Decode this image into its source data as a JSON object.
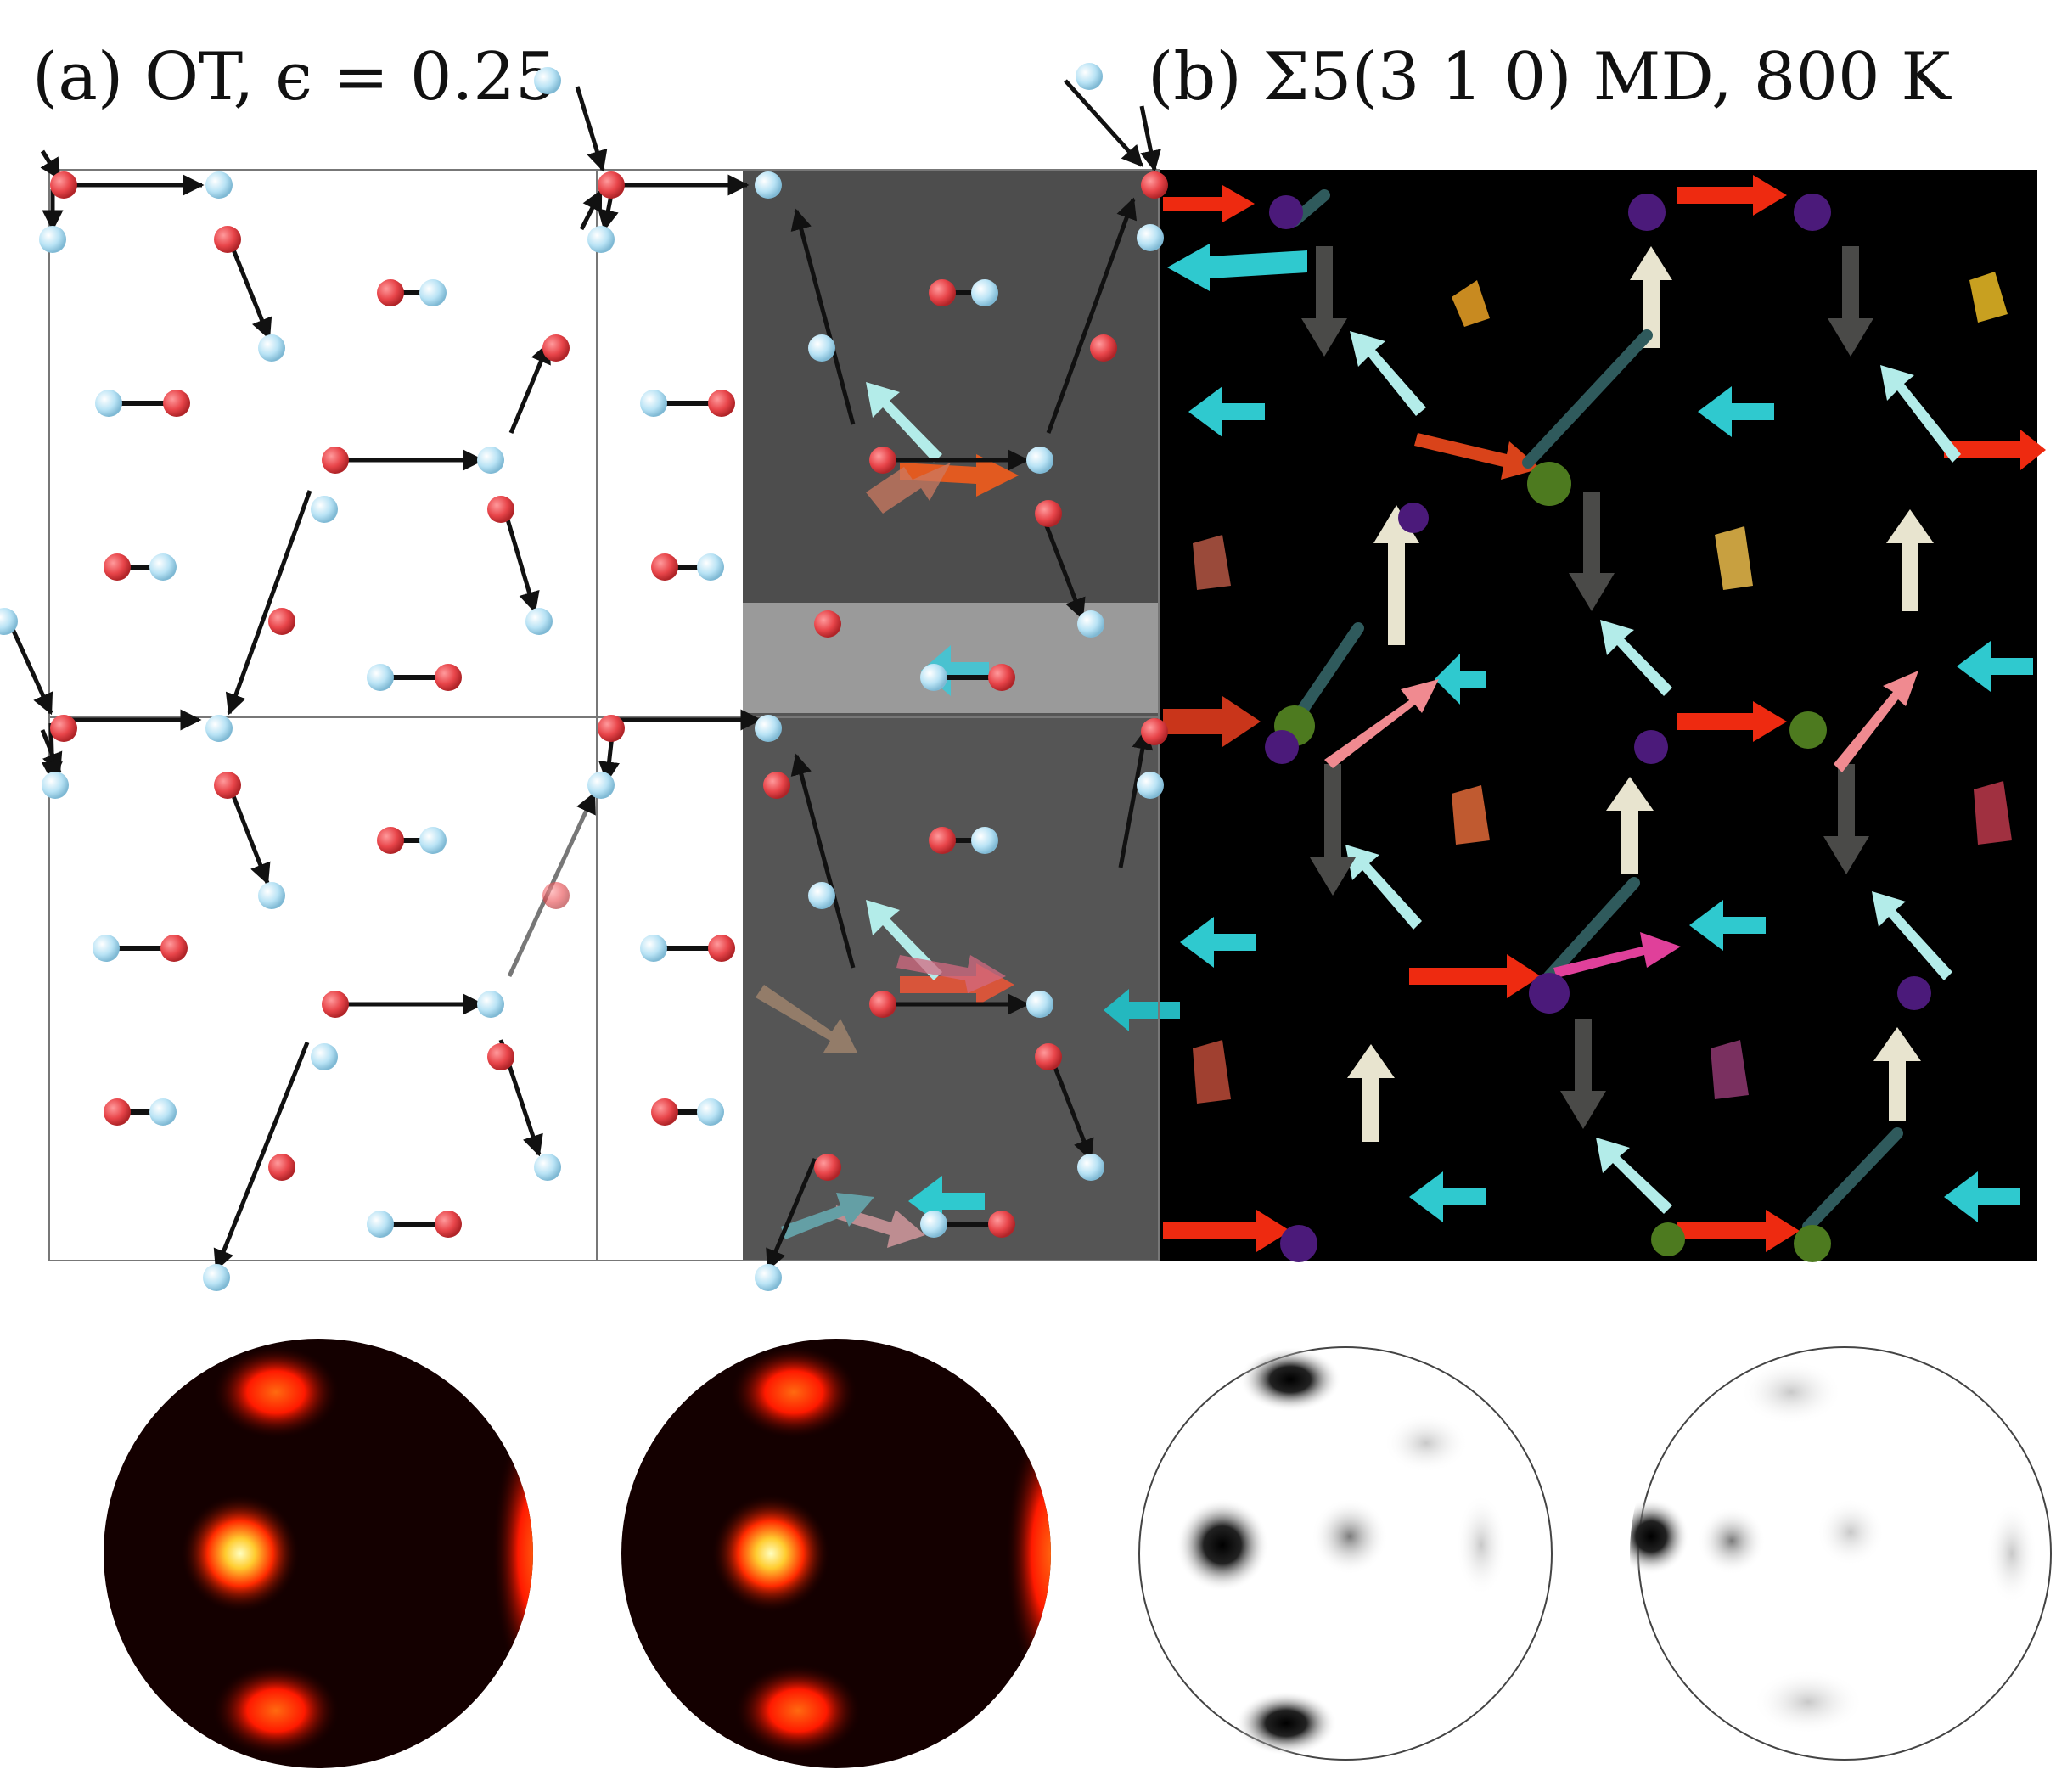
{
  "figure": {
    "panel_a": {
      "label": "(a) OT, ϵ = 0.25",
      "description_hidden": false
    },
    "panel_b": {
      "label": "(b) Σ5(3 1 0) MD, 800 K"
    },
    "colors": {
      "red_atom": "#e8454a",
      "blue_atom": "#b9e3f5",
      "md_background": "#000000",
      "overlay_gray": "#4a4a4a",
      "heat_dark": "#1a0000",
      "heat_bright": "#ffff99"
    },
    "pole_figures": [
      {
        "id": "pf1",
        "style": "heat"
      },
      {
        "id": "pf2",
        "style": "heat"
      },
      {
        "id": "pf3",
        "style": "gray"
      },
      {
        "id": "pf4",
        "style": "gray"
      }
    ]
  }
}
